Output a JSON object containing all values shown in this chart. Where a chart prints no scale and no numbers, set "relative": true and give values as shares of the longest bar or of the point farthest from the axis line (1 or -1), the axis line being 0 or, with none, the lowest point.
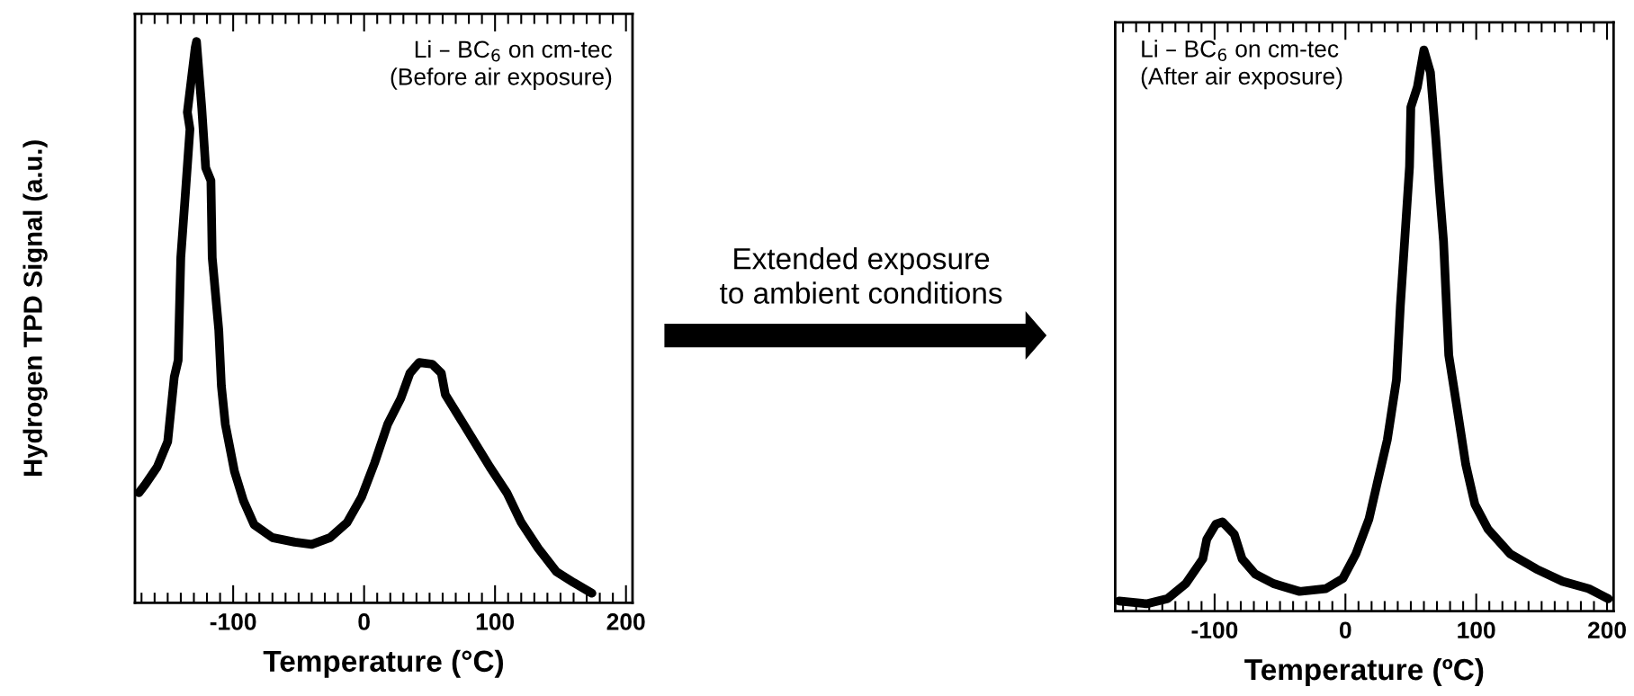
{
  "chart_data": [
    {
      "type": "line",
      "relative": true,
      "xlabel": "Temperature (°C)",
      "ylabel": "Hydrogen TPD Signal (a.u.)",
      "xlim": [
        -175,
        205
      ],
      "xticks": [
        -100,
        0,
        100,
        200
      ],
      "grid": false,
      "legend": false,
      "tick_labels": "x",
      "annotations": [
        "Li – BC$_{6}$ on cm-tec\n(Before air exposure)",
        "Extended exposure\nto ambient conditions"
      ],
      "series": [
        {
          "color": "#000000",
          "x": [
            -172,
            -167,
            -158,
            -150,
            -148,
            -145,
            -142,
            -140,
            -136,
            -133,
            -135,
            -129,
            -128,
            -124,
            -121,
            -117,
            -116,
            -111,
            -109,
            -106,
            -99,
            -92,
            -84,
            -70,
            -53,
            -40,
            -26,
            -13,
            -2,
            8,
            18,
            28,
            35,
            42,
            52,
            59,
            62,
            76,
            86,
            96,
            109,
            120,
            133,
            147,
            160,
            174
          ],
          "values": [
            0.196,
            0.211,
            0.242,
            0.287,
            0.333,
            0.402,
            0.432,
            0.615,
            0.745,
            0.844,
            0.874,
            0.989,
            1.0,
            0.882,
            0.775,
            0.752,
            0.615,
            0.486,
            0.386,
            0.318,
            0.234,
            0.181,
            0.139,
            0.116,
            0.108,
            0.104,
            0.116,
            0.143,
            0.188,
            0.249,
            0.318,
            0.364,
            0.409,
            0.428,
            0.425,
            0.409,
            0.371,
            0.318,
            0.28,
            0.242,
            0.196,
            0.143,
            0.097,
            0.055,
            0.036,
            0.017
          ]
        }
      ]
    },
    {
      "type": "line",
      "relative": true,
      "xlabel": "Temperature (ºC)",
      "xlim": [
        -176,
        205
      ],
      "xticks": [
        -100,
        0,
        100,
        200
      ],
      "grid": false,
      "legend": false,
      "tick_labels": "x",
      "annotations": [
        "Li – BC$_{6}$ on cm-tec\n(After air exposure)"
      ],
      "series": [
        {
          "color": "#000000",
          "x": [
            -173,
            -152,
            -136,
            -122,
            -109,
            -106,
            -99,
            -94,
            -85,
            -79,
            -69,
            -55,
            -35,
            -15,
            -2,
            8,
            18,
            25,
            32,
            39,
            42,
            45,
            49,
            50,
            55,
            60,
            65,
            69,
            72,
            75,
            79,
            85,
            92,
            99,
            109,
            126,
            146,
            166,
            186,
            201
          ],
          "values": [
            0.018,
            0.013,
            0.022,
            0.049,
            0.093,
            0.128,
            0.155,
            0.159,
            0.137,
            0.093,
            0.066,
            0.049,
            0.035,
            0.04,
            0.058,
            0.102,
            0.164,
            0.235,
            0.305,
            0.412,
            0.544,
            0.65,
            0.792,
            0.898,
            0.934,
            1.0,
            0.96,
            0.845,
            0.748,
            0.659,
            0.456,
            0.367,
            0.261,
            0.19,
            0.146,
            0.102,
            0.075,
            0.053,
            0.04,
            0.022
          ]
        }
      ]
    }
  ]
}
